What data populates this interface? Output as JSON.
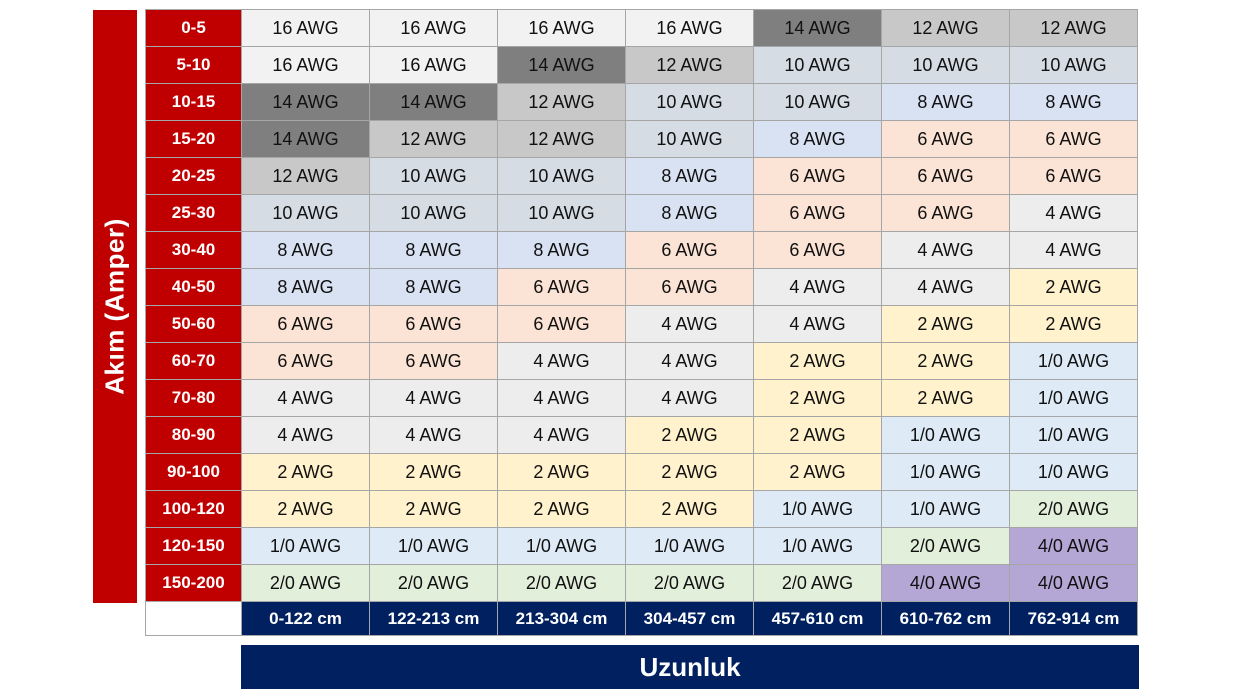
{
  "y_axis_label": "Akım (Amper)",
  "x_axis_label": "Uzunluk",
  "colors": {
    "header_red": "#c00000",
    "header_navy": "#002060",
    "16 AWG": "#f2f2f2",
    "14 AWG": "#7f7f7f",
    "12 AWG": "#c8c8c8",
    "10 AWG": "#d6dce4",
    "8 AWG": "#d9e2f3",
    "6 AWG": "#fbe4d5",
    "4 AWG": "#ededed",
    "2 AWG": "#fff2cc",
    "1/0 AWG": "#deebf7",
    "2/0 AWG": "#e2efda",
    "4/0 AWG": "#b4a7d6"
  },
  "columns": [
    "0-122 cm",
    "122-213 cm",
    "213-304 cm",
    "304-457 cm",
    "457-610 cm",
    "610-762 cm",
    "762-914 cm"
  ],
  "rows": [
    {
      "label": "0-5",
      "cells": [
        "16 AWG",
        "16 AWG",
        "16 AWG",
        "16 AWG",
        "14 AWG",
        "12 AWG",
        "12 AWG"
      ]
    },
    {
      "label": "5-10",
      "cells": [
        "16 AWG",
        "16 AWG",
        "14 AWG",
        "12 AWG",
        "10 AWG",
        "10 AWG",
        "10 AWG"
      ]
    },
    {
      "label": "10-15",
      "cells": [
        "14 AWG",
        "14 AWG",
        "12 AWG",
        "10 AWG",
        "10 AWG",
        "8 AWG",
        "8 AWG"
      ]
    },
    {
      "label": "15-20",
      "cells": [
        "14 AWG",
        "12 AWG",
        "12 AWG",
        "10 AWG",
        "8 AWG",
        "6 AWG",
        "6 AWG"
      ]
    },
    {
      "label": "20-25",
      "cells": [
        "12 AWG",
        "10 AWG",
        "10 AWG",
        "8 AWG",
        "6 AWG",
        "6 AWG",
        "6 AWG"
      ]
    },
    {
      "label": "25-30",
      "cells": [
        "10 AWG",
        "10 AWG",
        "10 AWG",
        "8 AWG",
        "6 AWG",
        "6 AWG",
        "4 AWG"
      ]
    },
    {
      "label": "30-40",
      "cells": [
        "8 AWG",
        "8 AWG",
        "8 AWG",
        "6 AWG",
        "6 AWG",
        "4 AWG",
        "4 AWG"
      ]
    },
    {
      "label": "40-50",
      "cells": [
        "8 AWG",
        "8 AWG",
        "6 AWG",
        "6 AWG",
        "4 AWG",
        "4 AWG",
        "2 AWG"
      ]
    },
    {
      "label": "50-60",
      "cells": [
        "6 AWG",
        "6 AWG",
        "6 AWG",
        "4 AWG",
        "4 AWG",
        "2 AWG",
        "2 AWG"
      ]
    },
    {
      "label": "60-70",
      "cells": [
        "6 AWG",
        "6 AWG",
        "4 AWG",
        "4 AWG",
        "2 AWG",
        "2 AWG",
        "1/0 AWG"
      ]
    },
    {
      "label": "70-80",
      "cells": [
        "4 AWG",
        "4 AWG",
        "4 AWG",
        "4 AWG",
        "2 AWG",
        "2 AWG",
        "1/0 AWG"
      ]
    },
    {
      "label": "80-90",
      "cells": [
        "4 AWG",
        "4 AWG",
        "4 AWG",
        "2 AWG",
        "2 AWG",
        "1/0 AWG",
        "1/0 AWG"
      ]
    },
    {
      "label": "90-100",
      "cells": [
        "2 AWG",
        "2 AWG",
        "2 AWG",
        "2 AWG",
        "2 AWG",
        "1/0 AWG",
        "1/0 AWG"
      ]
    },
    {
      "label": "100-120",
      "cells": [
        "2 AWG",
        "2 AWG",
        "2 AWG",
        "2 AWG",
        "1/0 AWG",
        "1/0 AWG",
        "2/0 AWG"
      ]
    },
    {
      "label": "120-150",
      "cells": [
        "1/0 AWG",
        "1/0 AWG",
        "1/0 AWG",
        "1/0 AWG",
        "1/0 AWG",
        "2/0 AWG",
        "4/0 AWG"
      ]
    },
    {
      "label": "150-200",
      "cells": [
        "2/0 AWG",
        "2/0 AWG",
        "2/0 AWG",
        "2/0 AWG",
        "2/0 AWG",
        "4/0 AWG",
        "4/0 AWG"
      ]
    }
  ]
}
